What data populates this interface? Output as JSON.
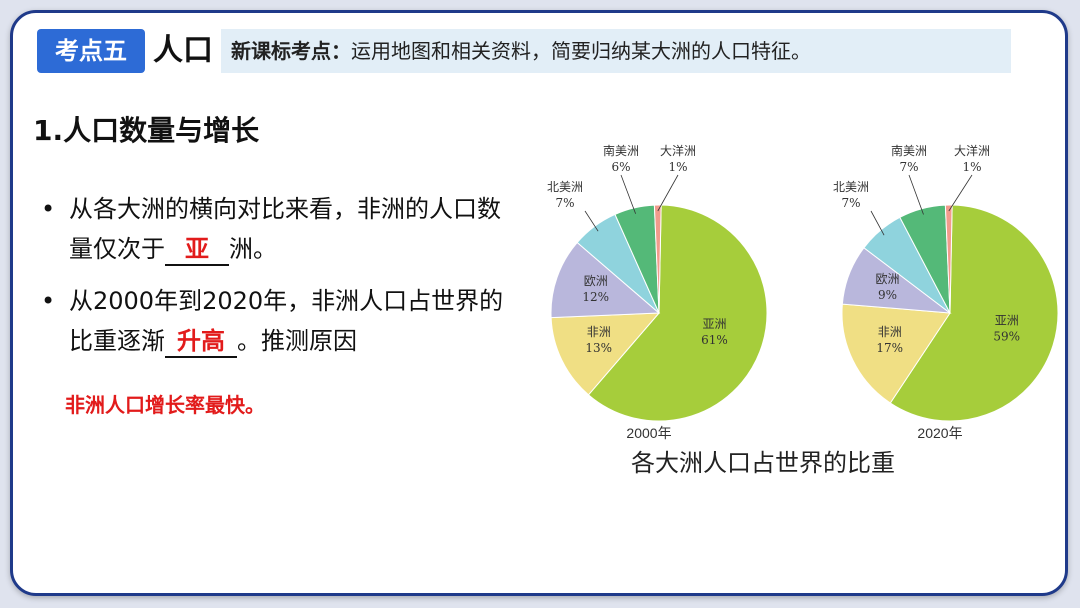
{
  "header": {
    "badge": "考点五",
    "topic": "人口",
    "standard_label": "新课标考点：",
    "standard_text": "运用地图和相关资料，简要归纳某大洲的人口特征。"
  },
  "section_title": "1.人口数量与增长",
  "bullets": [
    {
      "before": "从各大洲的横向对比来看，非洲的人口数量仅次于",
      "answer": "亚",
      "after": "洲。"
    },
    {
      "before": "从2000年到2020年，非洲人口占世界的比重逐渐",
      "answer": "升高",
      "after": "。推测原因"
    }
  ],
  "bullet_symbol": "•",
  "reason": "非洲人口增长率最快。",
  "caption": "各大洲人口占世界的比重",
  "colors": {
    "亚洲": "#a6cd3b",
    "非洲": "#f0df84",
    "欧洲": "#b9b7dc",
    "北美洲": "#8fd3dd",
    "南美洲": "#54b978",
    "大洋洲": "#f29b8c"
  },
  "chart_data": [
    {
      "type": "pie",
      "title": "2000年",
      "slices": [
        {
          "name": "亚洲",
          "value": 61,
          "label": "61%"
        },
        {
          "name": "非洲",
          "value": 13,
          "label": "13%"
        },
        {
          "name": "欧洲",
          "value": 12,
          "label": "12%"
        },
        {
          "name": "北美洲",
          "value": 7,
          "label": "7%"
        },
        {
          "name": "南美洲",
          "value": 6,
          "label": "6%"
        },
        {
          "name": "大洋洲",
          "value": 1,
          "label": "1%"
        }
      ]
    },
    {
      "type": "pie",
      "title": "2020年",
      "slices": [
        {
          "name": "亚洲",
          "value": 59,
          "label": "59%"
        },
        {
          "name": "非洲",
          "value": 17,
          "label": "17%"
        },
        {
          "name": "欧洲",
          "value": 9,
          "label": "9%"
        },
        {
          "name": "北美洲",
          "value": 7,
          "label": "7%"
        },
        {
          "name": "南美洲",
          "value": 7,
          "label": "7%"
        },
        {
          "name": "大洋洲",
          "value": 1,
          "label": "1%"
        }
      ]
    }
  ]
}
